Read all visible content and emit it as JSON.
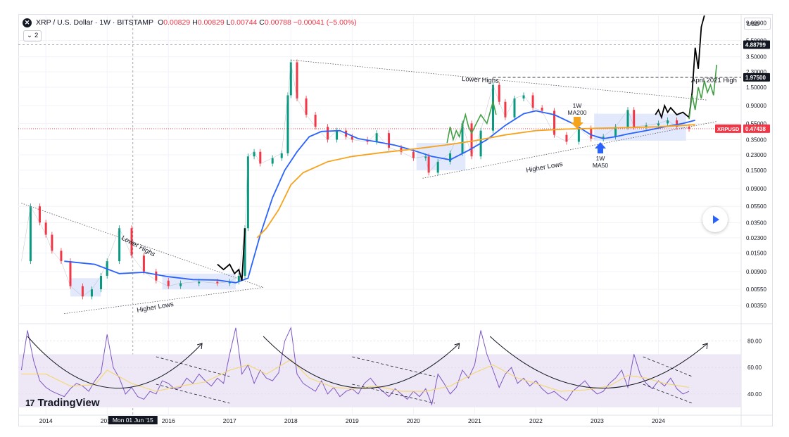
{
  "header": {
    "symbol_badge": "✕",
    "title": "XRP / U.S. Dollar · 1W · BITSTAMP",
    "ohlc": [
      {
        "k": "O",
        "v": "0.00829"
      },
      {
        "k": "H",
        "v": "0.00829"
      },
      {
        "k": "L",
        "v": "0.00744"
      },
      {
        "k": "C",
        "v": "0.00788"
      },
      {
        "k": "",
        "v": "−0.00041 (−5.00%)"
      }
    ],
    "indicator_count": "2",
    "chevron_icon": "chevron-down-icon"
  },
  "currency_label": "USD",
  "logo_text": "TradingView",
  "logo_mark": "17",
  "crosshair_date_label": "Mon 01 Jun '15",
  "colors": {
    "up": "#089981",
    "down": "#f23645",
    "ma50": "#2962ff",
    "ma200": "#f7a21b",
    "projection_green": "#43a047",
    "projection_black": "#000000",
    "rsi": "#7e57c2",
    "rsi_ma": "#f5d76e",
    "rsi_band": "#ede7f6",
    "pattern_fill": "#dbe4fb"
  },
  "chart_data": [
    {
      "type": "line",
      "title": "XRP / U.S. Dollar · 1W · BITSTAMP",
      "scale": "log",
      "x_ticks": [
        "2014",
        "2015",
        "2016",
        "2017",
        "2018",
        "2019",
        "2020",
        "2021",
        "2022",
        "2023",
        "2024"
      ],
      "y_ticks": [
        "9.00000",
        "5.50000",
        "3.50000",
        "2.30000",
        "1.50000",
        "0.90000",
        "0.55000",
        "0.35000",
        "0.23000",
        "0.15000",
        "0.09000",
        "0.05500",
        "0.03500",
        "0.02300",
        "0.01500",
        "0.00900",
        "0.00550",
        "0.00350"
      ],
      "ylim": [
        0.0022,
        11
      ],
      "price_labels": [
        {
          "value": 4.88799,
          "text": "4.88799",
          "style": "dark"
        },
        {
          "value": 1.975,
          "text": "1.97500",
          "style": "dark"
        },
        {
          "value": 0.47438,
          "text": "0.47438",
          "name": "XRPUSD",
          "style": "red"
        }
      ],
      "series": [
        {
          "name": "",
          "style": "price",
          "x": [
            2013.6,
            2013.75,
            2013.9,
            2014.0,
            2014.1,
            2014.25,
            2014.4,
            2014.6,
            2014.75,
            2014.9,
            2015.0,
            2015.2,
            2015.4,
            2015.6,
            2015.8,
            2016.0,
            2016.2,
            2016.5,
            2016.8,
            2017.0,
            2017.15,
            2017.25,
            2017.3,
            2017.4,
            2017.5,
            2017.7,
            2017.85,
            2017.95,
            2018.0,
            2018.1,
            2018.25,
            2018.4,
            2018.6,
            2018.75,
            2018.9,
            2019.0,
            2019.25,
            2019.4,
            2019.6,
            2019.8,
            2020.0,
            2020.2,
            2020.25,
            2020.4,
            2020.6,
            2020.8,
            2020.95,
            2021.1,
            2021.3,
            2021.4,
            2021.5,
            2021.65,
            2021.8,
            2021.95,
            2022.1,
            2022.3,
            2022.5,
            2022.7,
            2022.9,
            2023.1,
            2023.3,
            2023.5,
            2023.6,
            2023.8,
            2024.0,
            2024.15,
            2024.3,
            2024.5
          ],
          "y": [
            0.012,
            0.055,
            0.035,
            0.025,
            0.016,
            0.012,
            0.006,
            0.0045,
            0.0055,
            0.008,
            0.012,
            0.03,
            0.014,
            0.009,
            0.007,
            0.006,
            0.0065,
            0.0068,
            0.0065,
            0.0068,
            0.008,
            0.03,
            0.22,
            0.25,
            0.18,
            0.21,
            0.24,
            1.2,
            3.0,
            1.1,
            0.7,
            0.5,
            0.35,
            0.45,
            0.38,
            0.35,
            0.33,
            0.42,
            0.28,
            0.25,
            0.21,
            0.22,
            0.14,
            0.19,
            0.24,
            0.55,
            0.22,
            0.45,
            1.6,
            1.0,
            0.65,
            1.1,
            1.2,
            0.85,
            0.78,
            0.4,
            0.33,
            0.48,
            0.36,
            0.38,
            0.5,
            0.8,
            0.5,
            0.52,
            0.55,
            0.6,
            0.5,
            0.474
          ]
        },
        {
          "name": "1W MA50",
          "style": "ma50",
          "x": [
            2014.3,
            2014.8,
            2015.2,
            2015.6,
            2016.0,
            2016.4,
            2016.8,
            2017.1,
            2017.3,
            2017.5,
            2017.7,
            2017.9,
            2018.1,
            2018.3,
            2018.5,
            2018.8,
            2019.1,
            2019.4,
            2019.7,
            2020.0,
            2020.3,
            2020.6,
            2020.9,
            2021.2,
            2021.5,
            2021.8,
            2022.0,
            2022.3,
            2022.6,
            2022.9,
            2023.1,
            2023.3,
            2023.5,
            2023.8,
            2024.1,
            2024.4,
            2024.6
          ],
          "y": [
            0.012,
            0.011,
            0.0085,
            0.0088,
            0.0078,
            0.0072,
            0.0071,
            0.0066,
            0.0075,
            0.025,
            0.07,
            0.15,
            0.25,
            0.38,
            0.44,
            0.45,
            0.36,
            0.33,
            0.3,
            0.26,
            0.22,
            0.2,
            0.26,
            0.35,
            0.52,
            0.72,
            0.78,
            0.7,
            0.55,
            0.4,
            0.36,
            0.38,
            0.41,
            0.45,
            0.5,
            0.55,
            0.6
          ]
        },
        {
          "name": "1W MA200",
          "style": "ma200",
          "x": [
            2017.45,
            2017.6,
            2017.8,
            2018.0,
            2018.2,
            2018.6,
            2019.0,
            2019.5,
            2020.0,
            2020.5,
            2021.0,
            2021.5,
            2022.0,
            2022.5,
            2023.0,
            2023.5,
            2024.0,
            2024.4,
            2024.6
          ],
          "y": [
            0.023,
            0.03,
            0.05,
            0.1,
            0.14,
            0.19,
            0.22,
            0.245,
            0.27,
            0.3,
            0.34,
            0.4,
            0.45,
            0.47,
            0.48,
            0.49,
            0.5,
            0.52,
            0.53
          ]
        },
        {
          "name": "",
          "style": "proj_black_old",
          "x": [
            2016.8,
            2016.9,
            2017.0,
            2017.08,
            2017.15,
            2017.2,
            2017.25
          ],
          "y": [
            0.011,
            0.0095,
            0.011,
            0.0085,
            0.0095,
            0.007,
            0.03
          ]
        },
        {
          "name": "",
          "style": "proj_green",
          "x": [
            2020.55,
            2020.6,
            2020.65,
            2020.7,
            2020.75,
            2020.85,
            2020.9,
            2020.95,
            2021.0,
            2021.1,
            2021.2,
            2021.3,
            2021.35
          ],
          "y": [
            0.32,
            0.5,
            0.35,
            0.45,
            0.38,
            0.7,
            0.5,
            0.42,
            0.5,
            0.7,
            0.55,
            1.0,
            0.7
          ]
        },
        {
          "name": "",
          "style": "proj_black_new",
          "x": [
            2023.95,
            2024.0,
            2024.05,
            2024.1,
            2024.15,
            2024.2,
            2024.3,
            2024.4,
            2024.5,
            2024.55,
            2024.6,
            2024.65,
            2024.7,
            2024.75
          ],
          "y": [
            0.7,
            0.8,
            0.65,
            0.9,
            0.75,
            0.85,
            0.7,
            0.75,
            0.65,
            1.3,
            4.5,
            2.5,
            8.0,
            11.0
          ]
        },
        {
          "name": "",
          "style": "proj_green_new",
          "x": [
            2024.5,
            2024.55,
            2024.6,
            2024.65,
            2024.7,
            2024.75,
            2024.8,
            2024.85,
            2024.9,
            2024.95
          ],
          "y": [
            0.62,
            1.2,
            0.8,
            1.5,
            1.1,
            1.8,
            1.3,
            1.6,
            1.2,
            2.8
          ]
        }
      ]
    },
    {
      "type": "line",
      "title": "",
      "x_ticks": [
        "2014",
        "2015",
        "2016",
        "2017",
        "2018",
        "2019",
        "2020",
        "2021",
        "2022",
        "2023",
        "2024"
      ],
      "y_ticks": [
        "80.00",
        "60.00",
        "40.00"
      ],
      "ylim": [
        24,
        92
      ],
      "band": [
        30,
        70
      ],
      "series": [
        {
          "name": "",
          "style": "rsi",
          "x": [
            2013.6,
            2013.7,
            2013.8,
            2013.9,
            2014.0,
            2014.1,
            2014.2,
            2014.3,
            2014.4,
            2014.5,
            2014.6,
            2014.7,
            2014.8,
            2014.9,
            2015.0,
            2015.1,
            2015.2,
            2015.3,
            2015.4,
            2015.5,
            2015.6,
            2015.7,
            2015.8,
            2015.9,
            2016.0,
            2016.1,
            2016.2,
            2016.3,
            2016.4,
            2016.5,
            2016.6,
            2016.7,
            2016.8,
            2016.9,
            2017.0,
            2017.1,
            2017.2,
            2017.3,
            2017.4,
            2017.5,
            2017.6,
            2017.7,
            2017.8,
            2017.9,
            2018.0,
            2018.1,
            2018.2,
            2018.3,
            2018.4,
            2018.5,
            2018.6,
            2018.7,
            2018.8,
            2018.9,
            2019.0,
            2019.1,
            2019.2,
            2019.3,
            2019.4,
            2019.5,
            2019.6,
            2019.7,
            2019.8,
            2019.9,
            2020.0,
            2020.1,
            2020.2,
            2020.3,
            2020.4,
            2020.5,
            2020.6,
            2020.7,
            2020.8,
            2020.9,
            2021.0,
            2021.1,
            2021.2,
            2021.3,
            2021.4,
            2021.5,
            2021.6,
            2021.7,
            2021.8,
            2021.9,
            2022.0,
            2022.1,
            2022.2,
            2022.3,
            2022.4,
            2022.5,
            2022.6,
            2022.7,
            2022.8,
            2022.9,
            2023.0,
            2023.1,
            2023.2,
            2023.3,
            2023.4,
            2023.5,
            2023.6,
            2023.7,
            2023.8,
            2023.9,
            2024.0,
            2024.1,
            2024.2,
            2024.3,
            2024.4,
            2024.5
          ],
          "y": [
            58,
            88,
            65,
            50,
            45,
            42,
            40,
            38,
            44,
            48,
            46,
            42,
            50,
            56,
            85,
            60,
            52,
            40,
            45,
            38,
            36,
            42,
            40,
            50,
            48,
            44,
            45,
            52,
            48,
            55,
            50,
            46,
            52,
            48,
            70,
            90,
            55,
            62,
            48,
            58,
            52,
            50,
            56,
            80,
            90,
            55,
            48,
            45,
            42,
            50,
            40,
            45,
            38,
            42,
            44,
            40,
            48,
            52,
            46,
            42,
            38,
            44,
            40,
            36,
            42,
            38,
            44,
            32,
            55,
            48,
            40,
            45,
            58,
            52,
            62,
            88,
            70,
            58,
            45,
            55,
            60,
            48,
            52,
            46,
            50,
            44,
            40,
            42,
            38,
            35,
            42,
            46,
            50,
            44,
            40,
            42,
            48,
            52,
            58,
            45,
            70,
            55,
            48,
            44,
            50,
            46,
            52,
            44,
            40,
            42
          ]
        },
        {
          "name": "",
          "style": "rsi_ma",
          "x": [
            2013.6,
            2014.0,
            2014.4,
            2014.8,
            2015.0,
            2015.4,
            2015.8,
            2016.2,
            2016.6,
            2017.0,
            2017.3,
            2017.6,
            2018.0,
            2018.3,
            2018.7,
            2019.0,
            2019.4,
            2019.8,
            2020.2,
            2020.6,
            2021.0,
            2021.3,
            2021.7,
            2022.0,
            2022.4,
            2022.8,
            2023.2,
            2023.5,
            2023.8,
            2024.1,
            2024.5
          ],
          "y": [
            55,
            55,
            46,
            47,
            58,
            48,
            42,
            46,
            49,
            58,
            62,
            55,
            66,
            52,
            45,
            44,
            46,
            42,
            42,
            46,
            56,
            62,
            52,
            48,
            42,
            43,
            46,
            54,
            52,
            48,
            45
          ]
        }
      ]
    }
  ],
  "annotations": {
    "lower_highs_1": "Lower Highs",
    "higher_lows_1": "Higher Lows",
    "lower_highs_2": "Lower Highs",
    "higher_lows_2": "Higher Lows",
    "april_2021_high": "April 2021 High",
    "ma200_label_1": "1W",
    "ma200_label_2": "MA200",
    "ma50_label_1": "1W",
    "ma50_label_2": "MA50"
  },
  "icons": {
    "play": "play-icon",
    "symbol": "xrp-logo-icon",
    "logo": "tradingview-logo-icon"
  }
}
